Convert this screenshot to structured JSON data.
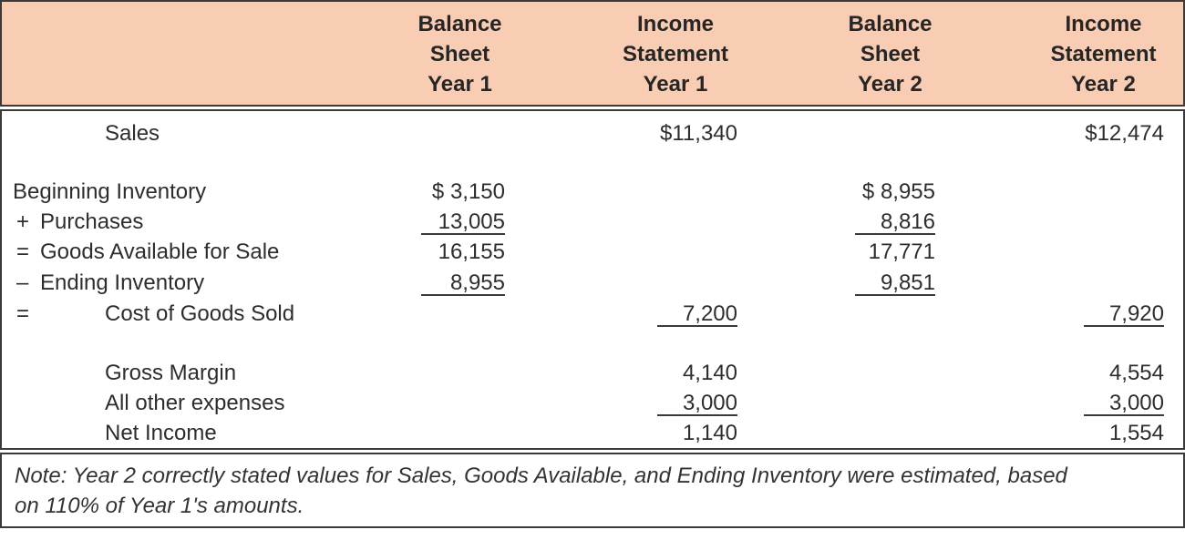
{
  "header": {
    "columns": [
      {
        "line1": "Balance",
        "line2": "Sheet",
        "line3": "Year 1"
      },
      {
        "line1": "Income",
        "line2": "Statement",
        "line3": "Year 1"
      },
      {
        "line1": "Balance",
        "line2": "Sheet",
        "line3": "Year 2"
      },
      {
        "line1": "Income",
        "line2": "Statement",
        "line3": "Year 2"
      }
    ]
  },
  "rows": {
    "sales": {
      "label": "Sales",
      "is1": "$11,340",
      "is2": "$12,474"
    },
    "beginning_inventory": {
      "label": "Beginning Inventory",
      "bs1": "$ 3,150",
      "bs2": "$ 8,955"
    },
    "purchases": {
      "prefix": "+",
      "label": "Purchases",
      "bs1": "13,005",
      "bs2": "8,816"
    },
    "goods_available": {
      "prefix": "=",
      "label": "Goods Available for Sale",
      "bs1": "16,155",
      "bs2": "17,771"
    },
    "ending_inventory": {
      "prefix": "–",
      "label": "Ending Inventory",
      "bs1": "8,955",
      "bs2": "9,851"
    },
    "cost_of_goods_sold": {
      "prefix": "=",
      "label": "Cost of Goods Sold",
      "is1": "7,200",
      "is2": "7,920"
    },
    "gross_margin": {
      "label": "Gross Margin",
      "is1": "4,140",
      "is2": "4,554"
    },
    "all_other_expenses": {
      "label": "All other expenses",
      "is1": "3,000",
      "is2": "3,000"
    },
    "net_income": {
      "label": "Net Income",
      "is1": "1,140",
      "is2": "1,554"
    }
  },
  "note": {
    "line1": "Note: Year 2 correctly stated values for Sales, Goods Available, and Ending Inventory were estimated, based",
    "line2": "on 110% of Year 1's amounts."
  },
  "colors": {
    "header_bg": "#f9cdb3",
    "border": "#3a3a3a",
    "text": "#2d2d2d"
  }
}
